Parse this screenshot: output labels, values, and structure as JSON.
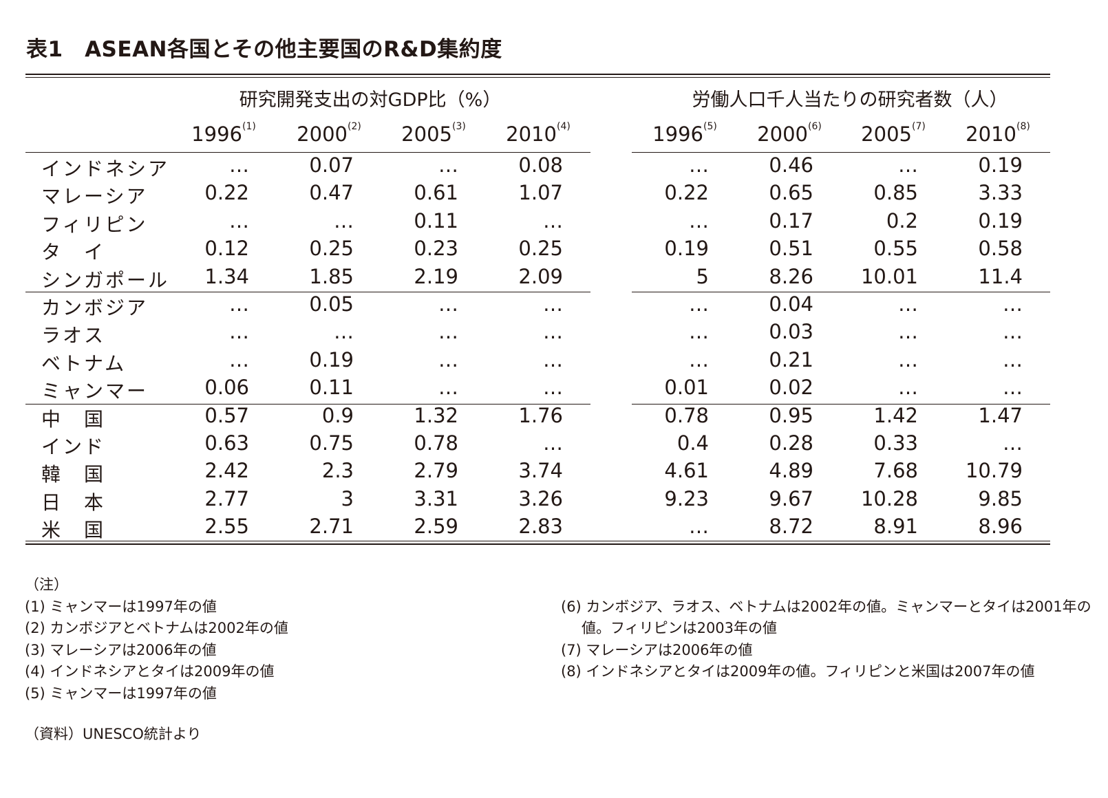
{
  "title": "表1　ASEAN各国とその他主要国のR&D集約度",
  "groups": [
    "研究開発支出の対GDP比（%）",
    "労働人口千人当たりの研究者数（人）"
  ],
  "years": [
    {
      "year": "1996",
      "note": "(1)"
    },
    {
      "year": "2000",
      "note": "(2)"
    },
    {
      "year": "2005",
      "note": "(3)"
    },
    {
      "year": "2010",
      "note": "(4)"
    },
    {
      "year": "1996",
      "note": "(5)"
    },
    {
      "year": "2000",
      "note": "(6)"
    },
    {
      "year": "2005",
      "note": "(7)"
    },
    {
      "year": "2010",
      "note": "(8)"
    }
  ],
  "rows": [
    {
      "country": "インドネシア",
      "values": [
        "…",
        "0.07",
        "…",
        "0.08",
        "…",
        "0.46",
        "…",
        "0.19"
      ]
    },
    {
      "country": "マレーシア",
      "values": [
        "0.22",
        "0.47",
        "0.61",
        "1.07",
        "0.22",
        "0.65",
        "0.85",
        "3.33"
      ]
    },
    {
      "country": "フィリピン",
      "values": [
        "…",
        "…",
        "0.11",
        "…",
        "…",
        "0.17",
        "0.2",
        "0.19"
      ]
    },
    {
      "country": "タ　イ",
      "values": [
        "0.12",
        "0.25",
        "0.23",
        "0.25",
        "0.19",
        "0.51",
        "0.55",
        "0.58"
      ]
    },
    {
      "country": "シンガポール",
      "values": [
        "1.34",
        "1.85",
        "2.19",
        "2.09",
        "5",
        "8.26",
        "10.01",
        "11.4"
      ]
    },
    {
      "country": "カンボジア",
      "values": [
        "…",
        "0.05",
        "…",
        "…",
        "…",
        "0.04",
        "…",
        "…"
      ]
    },
    {
      "country": "ラオス",
      "values": [
        "…",
        "…",
        "…",
        "…",
        "…",
        "0.03",
        "…",
        "…"
      ]
    },
    {
      "country": "ベトナム",
      "values": [
        "…",
        "0.19",
        "…",
        "…",
        "…",
        "0.21",
        "…",
        "…"
      ]
    },
    {
      "country": "ミャンマー",
      "values": [
        "0.06",
        "0.11",
        "…",
        "…",
        "0.01",
        "0.02",
        "…",
        "…"
      ]
    },
    {
      "country": "中　国",
      "values": [
        "0.57",
        "0.9",
        "1.32",
        "1.76",
        "0.78",
        "0.95",
        "1.42",
        "1.47"
      ]
    },
    {
      "country": "インド",
      "values": [
        "0.63",
        "0.75",
        "0.78",
        "…",
        "0.4",
        "0.28",
        "0.33",
        "…"
      ]
    },
    {
      "country": "韓　国",
      "values": [
        "2.42",
        "2.3",
        "2.79",
        "3.74",
        "4.61",
        "4.89",
        "7.68",
        "10.79"
      ]
    },
    {
      "country": "日　本",
      "values": [
        "2.77",
        "3",
        "3.31",
        "3.26",
        "9.23",
        "9.67",
        "10.28",
        "9.85"
      ]
    },
    {
      "country": "米　国",
      "values": [
        "2.55",
        "2.71",
        "2.59",
        "2.83",
        "…",
        "8.72",
        "8.91",
        "8.96"
      ]
    }
  ],
  "notes_heading": "（注）",
  "notes_left": [
    "(1) ミャンマーは1997年の値",
    "(2) カンボジアとベトナムは2002年の値",
    "(3) マレーシアは2006年の値",
    "(4) インドネシアとタイは2009年の値",
    "(5) ミャンマーは1997年の値"
  ],
  "notes_right": [
    "(6) カンボジア、ラオス、ベトナムは2002年の値。ミャンマーとタイは2001年の",
    "値。フィリピンは2003年の値",
    "(7) マレーシアは2006年の値",
    "(8) インドネシアとタイは2009年の値。フィリピンと米国は2007年の値"
  ],
  "source": "（資料）UNESCO統計より"
}
